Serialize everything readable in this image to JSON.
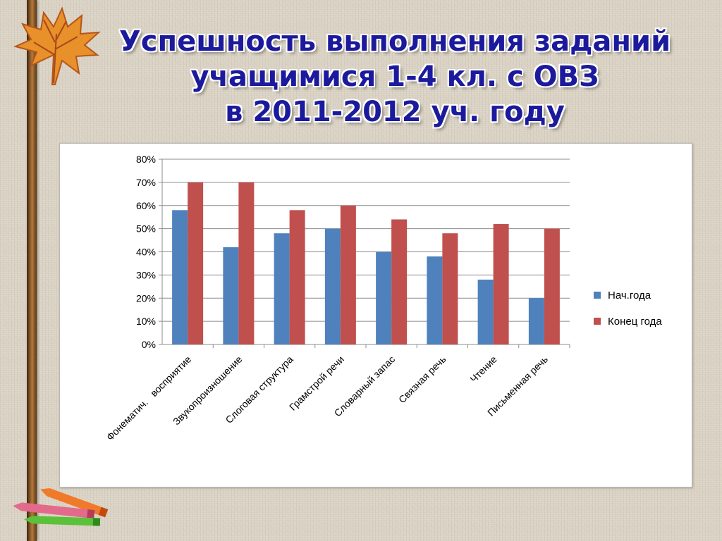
{
  "title": {
    "line1": "Успешность выполнения заданий",
    "line2": "учащимися 1-4 кл. с ОВЗ",
    "line3": "в 2011-2012 уч. году"
  },
  "decor": {
    "leaf_icon": "maple-leaf-icon",
    "crayons_icon": "crayons-icon"
  },
  "chart_data": {
    "type": "bar",
    "categories": [
      "Фонематич.   восприятие",
      "Звукопроизношение",
      "Слоговая структура",
      "Грамстрой речи",
      "Словарный запас",
      "Связная речь",
      "Чтение",
      "Письменная речь"
    ],
    "series": [
      {
        "name": "Нач.года",
        "color": "#4f81bd",
        "values": [
          58,
          42,
          48,
          50,
          40,
          38,
          28,
          20
        ]
      },
      {
        "name": "Конец года",
        "color": "#c0504d",
        "values": [
          70,
          70,
          58,
          60,
          54,
          48,
          52,
          50
        ]
      }
    ],
    "ylim": [
      0,
      80
    ],
    "yticks": [
      "0%",
      "10%",
      "20%",
      "30%",
      "40%",
      "50%",
      "60%",
      "70%",
      "80%"
    ],
    "grid": true,
    "legend_position": "right"
  }
}
